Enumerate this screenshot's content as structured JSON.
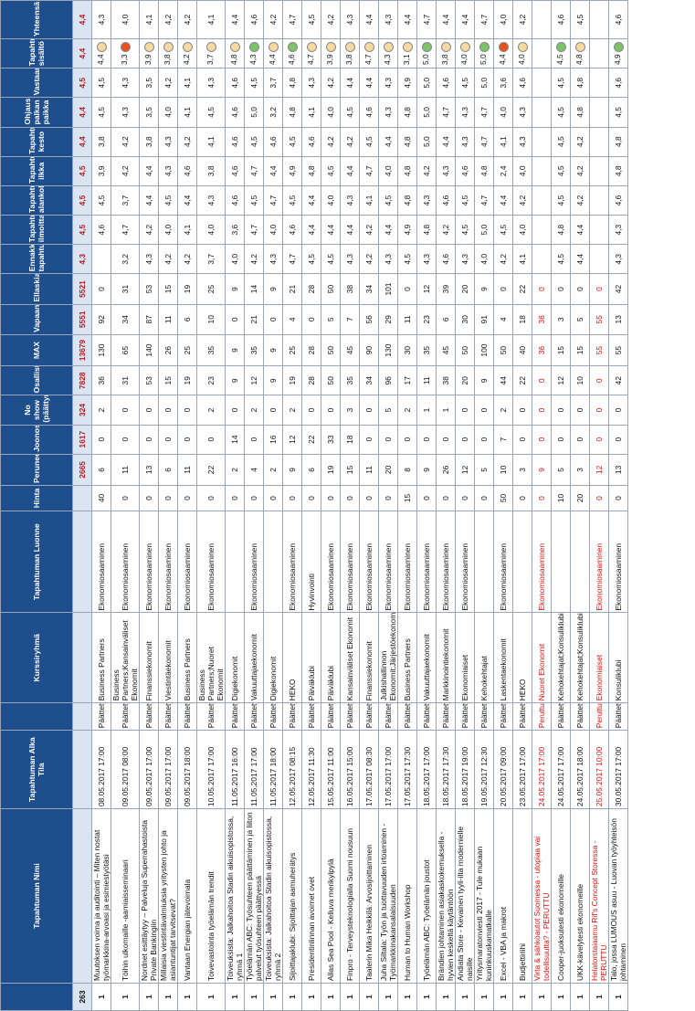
{
  "columns": [
    "",
    "Tapahtuman Nimi",
    "Tapahtuman Alka Tila",
    "",
    "Kurssiryhmä",
    "Tapahtuman Luonne",
    "Hinta",
    "Peruneet",
    "Joonosa",
    "No show (päättyny)",
    "Osallistunut",
    "MAX",
    "Vapaana",
    "Ellaskia",
    "Ennakkotieto tapahtumasta",
    "Tapahtumisen ilmoittautumisen",
    "Tapahtuman alankohta",
    "Tapahtumaa ilkka",
    "Tapahtuman kesto",
    "Ohjaus palkan paikka",
    "Vastaanotto",
    "Tapahtuman sisältö",
    "Yhteensä"
  ],
  "summary": {
    "count": "263",
    "peruneet": "2665",
    "joonosa": "1617",
    "noshow": "324",
    "osall": "7828",
    "max": "13679",
    "vapaana": "5551",
    "ellaskia": "5521",
    "ratings": [
      "4,3",
      "4,5",
      "4,5",
      "4,5",
      "4,4",
      "4,4",
      "4,5",
      "4,4",
      "4,4"
    ]
  },
  "rows": [
    {
      "n": "1",
      "name": "Muutoksen voima ja auditointi – Miten nostat työmarkkina-arvoasi ja esimiestyötäsi",
      "date": "08.05.2017 17:00",
      "tila": "Päättety",
      "ryhma": "Business Partners",
      "type": "Ekonomiosaaminen",
      "hinta": "40",
      "per": "6",
      "jon": "0",
      "ns": "2",
      "osa": "36",
      "max": "130",
      "vap": "92",
      "ell": "0",
      "r": [
        "",
        "4,6",
        "4,5",
        "3,9",
        "3,8",
        "4,5",
        "4,5",
        "4,4",
        "4,3"
      ],
      "dot": "#f5d9a0",
      "cancel": false
    },
    {
      "n": "1",
      "name": "Töihin ulkomaille -aamiaisseminaari",
      "date": "09.05.2017 08:00",
      "tila": "Päättety",
      "ryhma": "Business Partners;Kansainväliset Ekonomit",
      "type": "Ekonomiosaaminen",
      "hinta": "0",
      "per": "11",
      "jon": "0",
      "ns": "0",
      "osa": "31",
      "max": "65",
      "vap": "34",
      "ell": "31",
      "r": [
        "3,2",
        "4,7",
        "3,7",
        "4,2",
        "4,2",
        "4,3",
        "4,3",
        "3,3",
        "4,0"
      ],
      "dot": "#e8501f",
      "cancel": false
    },
    {
      "n": "1",
      "name": "Nordnet esittäytyy – Palveluja Superrahastoista Private Bankingiin",
      "date": "09.05.2017 17:00",
      "tila": "Päättety",
      "ryhma": "Finanssiekonomit",
      "type": "Ekonomiosaaminen",
      "hinta": "0",
      "per": "13",
      "jon": "0",
      "ns": "0",
      "osa": "53",
      "max": "140",
      "vap": "87",
      "ell": "53",
      "r": [
        "4,3",
        "4,2",
        "4,4",
        "4,4",
        "3,8",
        "3,5",
        "3,5",
        "3,9",
        "4,1"
      ],
      "dot": "#f5d9a0",
      "cancel": false
    },
    {
      "n": "1",
      "name": "Millaisia viestintävalmiuksia yritysten johto ja asiantuntijat tarvitsevat?",
      "date": "09.05.2017 17:00",
      "tila": "Päättety",
      "ryhma": "Viestintäekonomit",
      "type": "Ekonomiosaaminen",
      "hinta": "0",
      "per": "6",
      "jon": "0",
      "ns": "0",
      "osa": "15",
      "max": "26",
      "vap": "11",
      "ell": "15",
      "r": [
        "4,2",
        "4,0",
        "4,5",
        "4,3",
        "4,3",
        "4,0",
        "4,2",
        "3,8",
        "4,2"
      ],
      "dot": "#f5d9a0",
      "cancel": false
    },
    {
      "n": "1",
      "name": "Vantaan Energian jätevoimala",
      "date": "09.05.2017 18:00",
      "tila": "Päättety",
      "ryhma": "Business Partners",
      "type": "Ekonomiosaaminen",
      "hinta": "0",
      "per": "11",
      "jon": "0",
      "ns": "0",
      "osa": "19",
      "max": "25",
      "vap": "6",
      "ell": "19",
      "r": [
        "4,2",
        "4,1",
        "4,4",
        "4,6",
        "4,2",
        "4,1",
        "4,1",
        "4,2",
        "4,2"
      ],
      "dot": "#f5d9a0",
      "cancel": false
    },
    {
      "n": "1",
      "name": "Toivevastointa työelämän trendit",
      "date": "10.05.2017 17:00",
      "tila": "Päättety",
      "ryhma": "Business Partners;Nuoret Ekonomit",
      "type": "Ekonomiosaaminen",
      "hinta": "0",
      "per": "22",
      "jon": "0",
      "ns": "2",
      "osa": "23",
      "max": "35",
      "vap": "10",
      "ell": "25",
      "r": [
        "3,7",
        "4,0",
        "4,3",
        "3,8",
        "4,1",
        "4,5",
        "4,3",
        "3,7",
        "4,1"
      ],
      "dot": "#f5d9a0",
      "cancel": false
    },
    {
      "n": "1",
      "name": "Toiveuksista: Jalkahoitoa Stadin aikuisopistossa, ryhmä 1",
      "date": "11.05.2017 16:00",
      "tila": "Päättety",
      "ryhma": "Digiekonomit",
      "type": "",
      "hinta": "0",
      "per": "2",
      "jon": "14",
      "ns": "0",
      "osa": "9",
      "max": "9",
      "vap": "0",
      "ell": "9",
      "r": [
        "4,0",
        "3,6",
        "4,6",
        "4,6",
        "4,6",
        "4,6",
        "4,6",
        "4,8",
        "4,4"
      ],
      "dot": "#f5d9a0",
      "cancel": false
    },
    {
      "n": "1",
      "name": "Työelämän ABC: Työsuhteen päättäminen ja liiton palvelut työsuhteen päättyessä",
      "date": "11.05.2017 17:00",
      "tila": "Päättety",
      "ryhma": "Vakuuttajaekonomit",
      "type": "Ekonomiosaaminen",
      "hinta": "0",
      "per": "4",
      "jon": "0",
      "ns": "2",
      "osa": "12",
      "max": "35",
      "vap": "21",
      "ell": "14",
      "r": [
        "4,2",
        "4,7",
        "4,5",
        "4,7",
        "4,5",
        "5,0",
        "4,5",
        "4,3",
        "4,6"
      ],
      "dot": "#7cc36b",
      "cancel": false
    },
    {
      "n": "1",
      "name": "Toiveuksista: Jalkahoitoa Stadin aikuisopistossa, ryhmä 2",
      "date": "11.05.2017 18:00",
      "tila": "Päättety",
      "ryhma": "Digiekonomit",
      "type": "",
      "hinta": "0",
      "per": "2",
      "jon": "16",
      "ns": "0",
      "osa": "9",
      "max": "9",
      "vap": "0",
      "ell": "9",
      "r": [
        "4,3",
        "4,0",
        "4,7",
        "4,4",
        "4,6",
        "3,2",
        "3,7",
        "4,4",
        "4,2"
      ],
      "dot": "#f5d9a0",
      "cancel": false
    },
    {
      "n": "1",
      "name": "Sijoittajaklubi: Sijoittajan aamuherätys",
      "date": "12.05.2017 08:15",
      "tila": "Päättety",
      "ryhma": "HEKO",
      "type": "Ekonomiosaaminen",
      "hinta": "0",
      "per": "9",
      "jon": "12",
      "ns": "2",
      "osa": "19",
      "max": "25",
      "vap": "4",
      "ell": "21",
      "r": [
        "4,7",
        "4,6",
        "4,5",
        "4,9",
        "4,5",
        "4,8",
        "4,8",
        "4,6",
        "4,7"
      ],
      "dot": "#7cc36b",
      "cancel": false
    },
    {
      "n": "1",
      "name": "Presidentinlinnan avoimet ovet",
      "date": "12.05.2017 11:30",
      "tila": "Päättety",
      "ryhma": "Päiväklubi",
      "type": "Hyvinvointi",
      "hinta": "0",
      "per": "6",
      "jon": "22",
      "ns": "0",
      "osa": "28",
      "max": "28",
      "vap": "0",
      "ell": "28",
      "r": [
        "4,5",
        "4,4",
        "4,4",
        "4,8",
        "4,6",
        "4,1",
        "4,3",
        "4,7",
        "4,5"
      ],
      "dot": "#f5d9a0",
      "cancel": false
    },
    {
      "n": "1",
      "name": "Allas Sea Pool - Kelluva merikylpylä",
      "date": "15.05.2017 11:00",
      "tila": "Päättety",
      "ryhma": "Päiväklubi",
      "type": "Ekonomiosaaminen",
      "hinta": "0",
      "per": "19",
      "jon": "33",
      "ns": "0",
      "osa": "50",
      "max": "50",
      "vap": "5",
      "ell": "50",
      "r": [
        "4,5",
        "4,4",
        "4,0",
        "4,5",
        "4,2",
        "4,0",
        "4,2",
        "3,9",
        "4,2"
      ],
      "dot": "#f5d9a0",
      "cancel": false
    },
    {
      "n": "1",
      "name": "Finpro - Terveysteknologialla Suomi nousuun",
      "date": "16.05.2017 15:00",
      "tila": "Päättety",
      "ryhma": "Kansainväliset Ekonomit",
      "type": "Ekonomiosaaminen",
      "hinta": "0",
      "per": "15",
      "jon": "18",
      "ns": "3",
      "osa": "35",
      "max": "45",
      "vap": "7",
      "ell": "38",
      "r": [
        "4,3",
        "4,4",
        "4,3",
        "4,4",
        "4,2",
        "4,5",
        "4,4",
        "3,8",
        "4,3"
      ],
      "dot": "#f5d9a0",
      "cancel": false
    },
    {
      "n": "1",
      "name": "Taalerin Mika Heikkilä: Arvosijoittaminen",
      "date": "17.05.2017 08:30",
      "tila": "Päättety",
      "ryhma": "Finanssiekonomit",
      "type": "Ekonomiosaaminen",
      "hinta": "0",
      "per": "11",
      "jon": "0",
      "ns": "0",
      "osa": "34",
      "max": "90",
      "vap": "56",
      "ell": "34",
      "r": [
        "4,2",
        "4,2",
        "4,1",
        "4,7",
        "4,5",
        "4,6",
        "4,4",
        "4,7",
        "4,4"
      ],
      "dot": "#f5d9a0",
      "cancel": false
    },
    {
      "n": "1",
      "name": "Juha Siltala: Työn ja tuottavuuden irtoaminen - Työmarkkinakansalaisuuden",
      "date": "17.05.2017 17:00",
      "tila": "Päättety",
      "ryhma": "Julkishallinnon Ekonomit;Järjestöekonomit;Vaikutta",
      "type": "Ekonomiosaaminen",
      "hinta": "0",
      "per": "20",
      "jon": "0",
      "ns": "5",
      "osa": "96",
      "max": "130",
      "vap": "29",
      "ell": "101",
      "r": [
        "4,3",
        "4,4",
        "4,5",
        "4,0",
        "4,4",
        "4,3",
        "4,3",
        "4,3",
        "4,3"
      ],
      "dot": "#f5d9a0",
      "cancel": false
    },
    {
      "n": "1",
      "name": "Human to Human Workshop",
      "date": "17.05.2017 17:30",
      "tila": "Päättety",
      "ryhma": "Business Partners",
      "type": "Ekonomiosaaminen",
      "hinta": "15",
      "per": "8",
      "jon": "0",
      "ns": "2",
      "osa": "17",
      "max": "30",
      "vap": "11",
      "ell": "0",
      "r": [
        "4,5",
        "4,9",
        "4,8",
        "4,8",
        "4,8",
        "4,8",
        "4,9",
        "3,1",
        "4,4"
      ],
      "dot": "#f5d9a0",
      "cancel": false
    },
    {
      "n": "1",
      "name": "Työelämän ABC: Työelämän joustot",
      "date": "18.05.2017 17:00",
      "tila": "Päättety",
      "ryhma": "Vakuuttajaekonomit",
      "type": "Ekonomiosaaminen",
      "hinta": "0",
      "per": "9",
      "jon": "0",
      "ns": "1",
      "osa": "11",
      "max": "35",
      "vap": "23",
      "ell": "12",
      "r": [
        "4,3",
        "4,8",
        "4,3",
        "4,2",
        "5,0",
        "5,0",
        "5,0",
        "5,0",
        "4,7"
      ],
      "dot": "#7cc36b",
      "cancel": false
    },
    {
      "n": "1",
      "name": "Brändien johtaminen asiakaskokemuksella - hyvien keskeltä käytäntöön",
      "date": "18.05.2017 17:30",
      "tila": "Päättety",
      "ryhma": "Markkinointiekonomit",
      "type": "Ekonomiosaaminen",
      "hinta": "0",
      "per": "26",
      "jon": "0",
      "ns": "1",
      "osa": "38",
      "max": "45",
      "vap": "6",
      "ell": "39",
      "r": [
        "4,6",
        "4,2",
        "4,6",
        "4,3",
        "4,4",
        "4,7",
        "4,6",
        "3,8",
        "4,4"
      ],
      "dot": "#f5d9a0",
      "cancel": false
    },
    {
      "n": "1",
      "name": "Andiata Store - Kevainen tyyli-ilta modernielle naisille",
      "date": "18.05.2017 19:00",
      "tila": "Päättety",
      "ryhma": "Ekonomiaiset",
      "type": "Ekonomiosaaminen",
      "hinta": "0",
      "per": "12",
      "jon": "0",
      "ns": "0",
      "osa": "20",
      "max": "50",
      "vap": "30",
      "ell": "20",
      "r": [
        "4,3",
        "4,5",
        "4,5",
        "4,6",
        "4,3",
        "4,3",
        "4,5",
        "4,0",
        "4,4"
      ],
      "dot": "#f5d9a0",
      "cancel": false
    },
    {
      "n": "1",
      "name": "Yritysmaratonviesti 2017 - Tule mukaan kuninkuuskamatkalle",
      "date": "19.05.2017 12:30",
      "tila": "Päättety",
      "ryhma": "Kehokehtajat",
      "type": "",
      "hinta": "0",
      "per": "5",
      "jon": "0",
      "ns": "0",
      "osa": "9",
      "max": "100",
      "vap": "91",
      "ell": "9",
      "r": [
        "4,0",
        "5,0",
        "4,7",
        "4,8",
        "4,7",
        "4,7",
        "5,0",
        "5,0",
        "4,7"
      ],
      "dot": "#7cc36b",
      "cancel": false
    },
    {
      "n": "1",
      "name": "Excel - VBA ja makrot",
      "date": "20.05.2017 09:00",
      "tila": "Päättety",
      "ryhma": "Laskentaekonomit",
      "type": "Ekonomiosaaminen",
      "hinta": "50",
      "per": "10",
      "jon": "7",
      "ns": "2",
      "osa": "44",
      "max": "50",
      "vap": "4",
      "ell": "0",
      "r": [
        "4,2",
        "4,5",
        "4,4",
        "2,4",
        "4,1",
        "4,0",
        "3,6",
        "4,4",
        "4,0"
      ],
      "dot": "#e8501f",
      "cancel": false
    },
    {
      "n": "1",
      "name": "Budjettiriihi",
      "date": "23.05.2017 17:00",
      "tila": "Päättety",
      "ryhma": "HEKO",
      "type": "",
      "hinta": "0",
      "per": "3",
      "jon": "0",
      "ns": "0",
      "osa": "22",
      "max": "40",
      "vap": "18",
      "ell": "22",
      "r": [
        "4,1",
        "4,0",
        "4,2",
        "4,0",
        "4,3",
        "4,3",
        "4,6",
        "4,0",
        "4,2"
      ],
      "dot": "#f5d9a0",
      "cancel": false
    },
    {
      "n": "1",
      "name": "Virta & sähköautot Suomessa - utopiaa vai todellisuutta? - PERUTTU",
      "date": "24.05.2017 17:00",
      "tila": "Peruttu",
      "ryhma": "Nuoret Ekonomit",
      "type": "Ekonomiosaaminen",
      "hinta": "0",
      "per": "9",
      "jon": "0",
      "ns": "0",
      "osa": "0",
      "max": "36",
      "vap": "36",
      "ell": "0",
      "r": [
        "",
        "",
        "",
        "",
        "",
        "",
        "",
        "",
        ""
      ],
      "dot": "",
      "cancel": true
    },
    {
      "n": "1",
      "name": "Cooper-juoksutesti ekonomeille",
      "date": "24.05.2017 17:00",
      "tila": "Päättety",
      "ryhma": "Kehokehtajat;Konsuliklubi",
      "type": "",
      "hinta": "10",
      "per": "5",
      "jon": "0",
      "ns": "0",
      "osa": "12",
      "max": "15",
      "vap": "3",
      "ell": "0",
      "r": [
        "4,5",
        "4,8",
        "4,5",
        "4,5",
        "4,5",
        "4,5",
        "4,5",
        "4,5",
        "4,6"
      ],
      "dot": "#7cc36b",
      "cancel": false
    },
    {
      "n": "1",
      "name": "UKK-kävelytesti ekonomeille",
      "date": "24.05.2017 18:00",
      "tila": "Päättety",
      "ryhma": "Kehokehtajat;Konsuliklubi",
      "type": "",
      "hinta": "20",
      "per": "3",
      "jon": "0",
      "ns": "0",
      "osa": "10",
      "max": "15",
      "vap": "5",
      "ell": "0",
      "r": [
        "4,4",
        "4,4",
        "4,2",
        "4,2",
        "4,2",
        "4,8",
        "4,8",
        "4,8",
        "4,5"
      ],
      "dot": "#f5d9a0",
      "cancel": false
    },
    {
      "n": "1",
      "name": "Helatorstaiaamu Rif's Concept Storessa - PERUTTU",
      "date": "25.05.2017 10:00",
      "tila": "Peruttu",
      "ryhma": "Ekonomiaiset",
      "type": "Ekonomiosaaminen",
      "hinta": "0",
      "per": "12",
      "jon": "0",
      "ns": "0",
      "osa": "0",
      "max": "55",
      "vap": "55",
      "ell": "0",
      "r": [
        "",
        "",
        "",
        "",
        "",
        "",
        "",
        "",
        ""
      ],
      "dot": "",
      "cancel": true
    },
    {
      "n": "1",
      "name": "Talo, jossa LUMOUS asuu - Luovan työyhteisön johtaminen",
      "date": "30.05.2017 17:00",
      "tila": "Päättety",
      "ryhma": "Konsuliklubi",
      "type": "Ekonomiosaaminen",
      "hinta": "0",
      "per": "13",
      "jon": "0",
      "ns": "0",
      "osa": "42",
      "max": "55",
      "vap": "13",
      "ell": "42",
      "r": [
        "4,3",
        "4,3",
        "4,6",
        "4,8",
        "4,8",
        "4,5",
        "4,6",
        "4,9",
        "4,6"
      ],
      "dot": "#7cc36b",
      "cancel": false
    }
  ],
  "colors": {
    "header": "#1f4e8c",
    "summary": "#dbe5f1",
    "cancel": "#dd1111",
    "high": "#7cc36b",
    "mid": "#f5d9a0",
    "low": "#e8501f"
  }
}
